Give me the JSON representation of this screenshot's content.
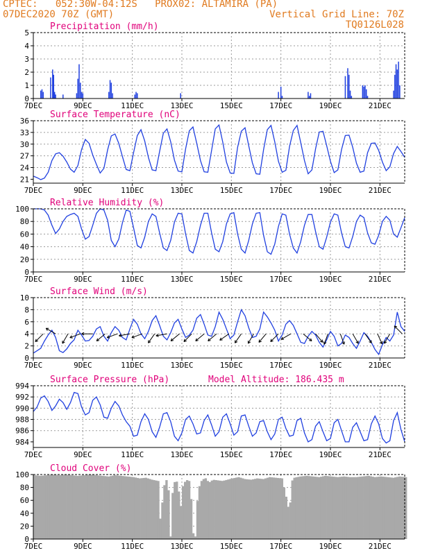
{
  "header": {
    "line1_left": "CPTEC:   052:30W-04:12S   PROX02: ALTAMIRA (PA)",
    "line2_left": "07DEC2020 70Z (GMT)",
    "line2_right": "Vertical Grid Line: 70Z",
    "line3_right": "TQ0126L028"
  },
  "colors": {
    "header": "#e07a1f",
    "title": "#e0007a",
    "series": "#2040e0",
    "cloud": "#a9a9a9",
    "arrow": "#000000"
  },
  "x_axis": {
    "start": "07DEC2020",
    "end": "22DEC2020",
    "tick_labels": [
      "7DEC",
      "9DEC",
      "11DEC",
      "13DEC",
      "15DEC",
      "17DEC",
      "19DEC",
      "21DEC"
    ],
    "tick_days": [
      0,
      2,
      4,
      6,
      8,
      10,
      12,
      14
    ],
    "range_days": [
      0,
      15
    ]
  },
  "chart_data": [
    {
      "type": "bar",
      "title": "Precipitation (mm/h)",
      "ylim": [
        0,
        5
      ],
      "yticks": [
        "0",
        "1",
        "2",
        "3",
        "4",
        "5"
      ],
      "x_days": [
        0.3,
        0.35,
        0.4,
        0.7,
        0.78,
        0.82,
        0.86,
        0.9,
        1.2,
        1.75,
        1.8,
        1.85,
        1.9,
        1.95,
        2.0,
        3.05,
        3.1,
        3.15,
        3.2,
        4.1,
        4.15,
        4.2,
        5.95,
        9.9,
        10.0,
        10.05,
        11.1,
        11.15,
        11.2,
        12.6,
        12.7,
        12.75,
        12.8,
        12.85,
        13.3,
        13.35,
        13.4,
        13.45,
        13.5,
        14.55,
        14.6,
        14.65,
        14.7,
        14.75,
        14.8
      ],
      "values": [
        0.6,
        0.7,
        0.5,
        1.6,
        2.2,
        1.8,
        0.5,
        0.3,
        0.3,
        0.4,
        1.5,
        2.6,
        1.2,
        0.5,
        0.4,
        0.5,
        1.4,
        1.2,
        0.4,
        0.3,
        0.5,
        0.4,
        0.4,
        0.5,
        0.9,
        0.2,
        0.5,
        0.2,
        0.4,
        1.7,
        2.3,
        1.8,
        0.6,
        0.2,
        1.0,
        0.9,
        1.0,
        0.7,
        0.2,
        0.6,
        1.8,
        2.6,
        2.2,
        2.8,
        1.0
      ],
      "bar_width_days": 0.04
    },
    {
      "type": "line",
      "title": "Surface Temperature (nC)",
      "ylim": [
        20,
        36
      ],
      "yticks": [
        "21",
        "24",
        "27",
        "30",
        "33",
        "36"
      ],
      "x_days": [
        0,
        0.15,
        0.3,
        0.45,
        0.6,
        0.75,
        0.9,
        1.05,
        1.2,
        1.35,
        1.5,
        1.65,
        1.8,
        1.95,
        2.1,
        2.25,
        2.4,
        2.55,
        2.7,
        2.85,
        3.0,
        3.15,
        3.3,
        3.45,
        3.6,
        3.75,
        3.9,
        4.05,
        4.2,
        4.35,
        4.5,
        4.65,
        4.8,
        4.95,
        5.1,
        5.25,
        5.4,
        5.55,
        5.7,
        5.85,
        6.0,
        6.15,
        6.3,
        6.45,
        6.6,
        6.75,
        6.9,
        7.05,
        7.2,
        7.35,
        7.5,
        7.65,
        7.8,
        7.95,
        8.1,
        8.25,
        8.4,
        8.55,
        8.7,
        8.85,
        9.0,
        9.15,
        9.3,
        9.45,
        9.6,
        9.75,
        9.9,
        10.05,
        10.2,
        10.35,
        10.5,
        10.65,
        10.8,
        10.95,
        11.1,
        11.25,
        11.4,
        11.55,
        11.7,
        11.85,
        12.0,
        12.15,
        12.3,
        12.45,
        12.6,
        12.75,
        12.9,
        13.05,
        13.2,
        13.35,
        13.5,
        13.65,
        13.8,
        13.95,
        14.1,
        14.25,
        14.4,
        14.55,
        14.7,
        14.85,
        15.0
      ],
      "values": [
        21.8,
        21.4,
        20.9,
        21.3,
        22.8,
        25.8,
        27.5,
        27.8,
        26.9,
        25.4,
        23.6,
        22.8,
        24.5,
        28.6,
        31.2,
        30.2,
        27.2,
        24.8,
        22.6,
        23.8,
        28.5,
        32.1,
        32.6,
        30.2,
        26.8,
        23.5,
        23.2,
        27.8,
        32.2,
        33.7,
        30.8,
        26.6,
        23.4,
        23.2,
        28.1,
        32.8,
        33.9,
        30.6,
        25.9,
        23.1,
        22.9,
        28.8,
        33.4,
        34.4,
        30.2,
        25.8,
        22.9,
        22.8,
        28.4,
        33.9,
        34.9,
        30.5,
        25.4,
        22.6,
        22.5,
        29.2,
        33.3,
        34.2,
        29.6,
        25.2,
        22.4,
        22.3,
        28.6,
        33.7,
        34.8,
        30.6,
        25.6,
        22.8,
        23.3,
        29.4,
        33.5,
        34.8,
        30.4,
        25.8,
        22.4,
        23.4,
        28.8,
        33.1,
        33.3,
        29.6,
        25.6,
        22.7,
        23.4,
        28.6,
        32.2,
        32.3,
        29.2,
        25.1,
        22.8,
        23.1,
        27.8,
        30.2,
        30.3,
        28.4,
        25.4,
        23.2,
        24.2,
        27.6,
        29.4,
        28.1,
        26.6
      ]
    },
    {
      "type": "line",
      "title": "Relative Humidity (%)",
      "ylim": [
        0,
        100
      ],
      "yticks": [
        "0",
        "20",
        "40",
        "60",
        "80",
        "100"
      ],
      "x_days": [
        0,
        0.15,
        0.3,
        0.45,
        0.6,
        0.75,
        0.9,
        1.05,
        1.2,
        1.35,
        1.5,
        1.65,
        1.8,
        1.95,
        2.1,
        2.25,
        2.4,
        2.55,
        2.7,
        2.85,
        3.0,
        3.15,
        3.3,
        3.45,
        3.6,
        3.75,
        3.9,
        4.05,
        4.2,
        4.35,
        4.5,
        4.65,
        4.8,
        4.95,
        5.1,
        5.25,
        5.4,
        5.55,
        5.7,
        5.85,
        6.0,
        6.15,
        6.3,
        6.45,
        6.6,
        6.75,
        6.9,
        7.05,
        7.2,
        7.35,
        7.5,
        7.65,
        7.8,
        7.95,
        8.1,
        8.25,
        8.4,
        8.55,
        8.7,
        8.85,
        9.0,
        9.15,
        9.3,
        9.45,
        9.6,
        9.75,
        9.9,
        10.05,
        10.2,
        10.35,
        10.5,
        10.65,
        10.8,
        10.95,
        11.1,
        11.25,
        11.4,
        11.55,
        11.7,
        11.85,
        12.0,
        12.15,
        12.3,
        12.45,
        12.6,
        12.75,
        12.9,
        13.05,
        13.2,
        13.35,
        13.5,
        13.65,
        13.8,
        13.95,
        14.1,
        14.25,
        14.4,
        14.55,
        14.7,
        14.85,
        15.0
      ],
      "values": [
        100,
        100,
        100,
        98,
        90,
        74,
        61,
        68,
        80,
        88,
        91,
        93,
        88,
        68,
        52,
        56,
        74,
        93,
        100,
        98,
        82,
        50,
        40,
        52,
        78,
        98,
        96,
        70,
        42,
        38,
        55,
        80,
        92,
        88,
        62,
        38,
        34,
        50,
        79,
        93,
        92,
        60,
        34,
        30,
        48,
        74,
        93,
        93,
        62,
        36,
        32,
        48,
        76,
        92,
        94,
        60,
        36,
        30,
        50,
        76,
        93,
        94,
        58,
        32,
        28,
        44,
        72,
        92,
        90,
        60,
        38,
        30,
        48,
        74,
        91,
        91,
        64,
        40,
        36,
        55,
        79,
        92,
        90,
        62,
        40,
        38,
        56,
        80,
        90,
        86,
        62,
        46,
        44,
        58,
        80,
        88,
        82,
        60,
        55,
        70,
        86
      ]
    },
    {
      "type": "line",
      "title": "Surface Wind (m/s)",
      "ylim": [
        0,
        10
      ],
      "yticks": [
        "0",
        "2",
        "4",
        "6",
        "8",
        "10"
      ],
      "x_days": [
        0,
        0.15,
        0.3,
        0.45,
        0.6,
        0.75,
        0.9,
        1.05,
        1.2,
        1.35,
        1.5,
        1.65,
        1.8,
        1.95,
        2.1,
        2.25,
        2.4,
        2.55,
        2.7,
        2.85,
        3.0,
        3.15,
        3.3,
        3.45,
        3.6,
        3.75,
        3.9,
        4.05,
        4.2,
        4.35,
        4.5,
        4.65,
        4.8,
        4.95,
        5.1,
        5.25,
        5.4,
        5.55,
        5.7,
        5.85,
        6.0,
        6.15,
        6.3,
        6.45,
        6.6,
        6.75,
        6.9,
        7.05,
        7.2,
        7.35,
        7.5,
        7.65,
        7.8,
        7.95,
        8.1,
        8.25,
        8.4,
        8.55,
        8.7,
        8.85,
        9.0,
        9.15,
        9.3,
        9.45,
        9.6,
        9.75,
        9.9,
        10.05,
        10.2,
        10.35,
        10.5,
        10.65,
        10.8,
        10.95,
        11.1,
        11.25,
        11.4,
        11.55,
        11.7,
        11.85,
        12.0,
        12.15,
        12.3,
        12.45,
        12.6,
        12.75,
        12.9,
        13.05,
        13.2,
        13.35,
        13.5,
        13.65,
        13.8,
        13.95,
        14.1,
        14.25,
        14.4,
        14.55,
        14.7,
        14.85,
        15.0
      ],
      "values": [
        0.8,
        1.2,
        1.6,
        2.8,
        3.8,
        4.6,
        3.4,
        1.2,
        0.9,
        1.5,
        2.4,
        3.0,
        4.6,
        3.8,
        2.8,
        2.9,
        3.6,
        4.8,
        5.2,
        3.6,
        2.8,
        4.2,
        5.2,
        4.6,
        3.4,
        3.0,
        4.8,
        6.4,
        5.6,
        4.0,
        3.2,
        4.4,
        6.2,
        7.0,
        5.4,
        3.6,
        3.0,
        4.2,
        5.8,
        6.4,
        4.8,
        3.4,
        3.8,
        4.6,
        6.6,
        7.2,
        5.6,
        3.8,
        3.6,
        5.2,
        7.6,
        6.4,
        4.8,
        3.2,
        3.8,
        6.0,
        8.0,
        7.0,
        5.0,
        3.4,
        3.6,
        4.8,
        7.6,
        6.8,
        5.8,
        4.6,
        2.8,
        3.8,
        5.6,
        6.2,
        5.4,
        4.0,
        2.6,
        2.4,
        3.6,
        4.4,
        3.8,
        2.6,
        1.8,
        3.0,
        4.4,
        3.6,
        2.0,
        2.4,
        3.8,
        3.4,
        2.4,
        1.6,
        2.8,
        4.2,
        3.6,
        2.6,
        1.4,
        0.6,
        2.2,
        3.4,
        2.8,
        3.8,
        7.6,
        5.2,
        4.4
      ],
      "wind_arrow_days": [
        0.4,
        0.9,
        1.4,
        1.9,
        2.4,
        2.9,
        3.4,
        3.9,
        4.4,
        4.9,
        5.4,
        5.9,
        6.4,
        6.9,
        7.4,
        7.9,
        8.4,
        8.9,
        9.4,
        9.9,
        10.4,
        10.9,
        11.4,
        11.9,
        12.4,
        12.9,
        13.4,
        13.9,
        14.4,
        14.9
      ],
      "wind_arrow_toward_deg": [
        225,
        300,
        210,
        250,
        270,
        230,
        250,
        260,
        250,
        215,
        260,
        230,
        225,
        230,
        230,
        235,
        215,
        210,
        220,
        225,
        240,
        130,
        140,
        200,
        160,
        150,
        145,
        155,
        210,
        315
      ]
    },
    {
      "type": "line",
      "title": "Surface Pressure (hPa)",
      "annotation": "Model Altitude: 186.435 m",
      "ylim": [
        983,
        994
      ],
      "yticks": [
        "984",
        "986",
        "988",
        "990",
        "992",
        "994"
      ],
      "x_days": [
        0,
        0.15,
        0.3,
        0.45,
        0.6,
        0.75,
        0.9,
        1.05,
        1.2,
        1.35,
        1.5,
        1.65,
        1.8,
        1.95,
        2.1,
        2.25,
        2.4,
        2.55,
        2.7,
        2.85,
        3.0,
        3.15,
        3.3,
        3.45,
        3.6,
        3.75,
        3.9,
        4.05,
        4.2,
        4.35,
        4.5,
        4.65,
        4.8,
        4.95,
        5.1,
        5.25,
        5.4,
        5.55,
        5.7,
        5.85,
        6.0,
        6.15,
        6.3,
        6.45,
        6.6,
        6.75,
        6.9,
        7.05,
        7.2,
        7.35,
        7.5,
        7.65,
        7.8,
        7.95,
        8.1,
        8.25,
        8.4,
        8.55,
        8.7,
        8.85,
        9.0,
        9.15,
        9.3,
        9.45,
        9.6,
        9.75,
        9.9,
        10.05,
        10.2,
        10.35,
        10.5,
        10.65,
        10.8,
        10.95,
        11.1,
        11.25,
        11.4,
        11.55,
        11.7,
        11.85,
        12.0,
        12.15,
        12.3,
        12.45,
        12.6,
        12.75,
        12.9,
        13.05,
        13.2,
        13.35,
        13.5,
        13.65,
        13.8,
        13.95,
        14.1,
        14.25,
        14.4,
        14.55,
        14.7,
        14.85,
        15.0
      ],
      "values": [
        989.4,
        990.2,
        991.8,
        992.2,
        991.2,
        989.6,
        990.4,
        991.6,
        991.0,
        989.8,
        991.0,
        992.8,
        992.6,
        990.2,
        988.8,
        989.2,
        991.4,
        992.0,
        990.6,
        988.4,
        988.2,
        990.0,
        991.2,
        990.4,
        988.8,
        987.6,
        986.8,
        985.0,
        985.2,
        987.6,
        989.0,
        988.0,
        985.8,
        984.8,
        986.6,
        989.0,
        989.2,
        987.6,
        985.0,
        984.2,
        985.6,
        988.0,
        988.6,
        987.2,
        985.4,
        985.6,
        987.8,
        988.8,
        987.0,
        985.0,
        985.8,
        988.4,
        989.0,
        987.2,
        985.2,
        985.8,
        988.6,
        988.8,
        986.8,
        985.0,
        985.6,
        987.6,
        987.8,
        985.8,
        984.4,
        985.4,
        988.0,
        988.4,
        986.4,
        985.0,
        985.2,
        987.8,
        988.2,
        985.6,
        984.0,
        984.4,
        986.8,
        987.6,
        985.8,
        984.2,
        984.6,
        987.4,
        988.0,
        986.0,
        984.0,
        984.0,
        986.6,
        987.4,
        985.8,
        984.2,
        984.4,
        987.2,
        988.6,
        987.2,
        984.6,
        983.8,
        984.2,
        987.8,
        989.2,
        986.2,
        984.0
      ]
    },
    {
      "type": "area",
      "title": "Cloud Cover (%)",
      "ylim": [
        0,
        100
      ],
      "yticks": [
        "0",
        "20",
        "40",
        "60",
        "80",
        "100"
      ],
      "x_days": [
        0,
        0.25,
        0.5,
        0.75,
        1.0,
        1.25,
        1.5,
        1.75,
        2.0,
        2.25,
        2.5,
        2.75,
        3.0,
        3.25,
        3.5,
        3.75,
        4.0,
        4.25,
        4.5,
        4.75,
        5.0,
        5.1,
        5.2,
        5.3,
        5.4,
        5.5,
        5.6,
        5.7,
        5.8,
        5.9,
        6.0,
        6.1,
        6.2,
        6.3,
        6.4,
        6.5,
        6.6,
        6.7,
        6.8,
        6.9,
        7.0,
        7.1,
        7.2,
        7.4,
        7.6,
        7.8,
        8.0,
        8.25,
        8.5,
        8.75,
        9.0,
        9.25,
        9.5,
        9.75,
        10.0,
        10.2,
        10.3,
        10.4,
        10.5,
        10.6,
        10.75,
        11.0,
        11.25,
        11.5,
        11.75,
        12.0,
        12.25,
        12.5,
        12.75,
        13.0,
        13.25,
        13.5,
        13.75,
        14.0,
        14.25,
        14.5,
        14.75,
        15.0
      ],
      "values": [
        99,
        98,
        99,
        100,
        99,
        100,
        99,
        98,
        99,
        100,
        99,
        98,
        97,
        99,
        98,
        97,
        96,
        94,
        95,
        92,
        90,
        20,
        75,
        92,
        90,
        4,
        85,
        90,
        88,
        45,
        82,
        90,
        92,
        88,
        10,
        4,
        70,
        88,
        92,
        95,
        90,
        88,
        92,
        91,
        90,
        92,
        94,
        96,
        93,
        92,
        94,
        93,
        96,
        95,
        94,
        60,
        40,
        90,
        95,
        96,
        97,
        98,
        97,
        96,
        98,
        97,
        96,
        97,
        96,
        96,
        97,
        98,
        96,
        97,
        96,
        95,
        97,
        96
      ]
    }
  ]
}
